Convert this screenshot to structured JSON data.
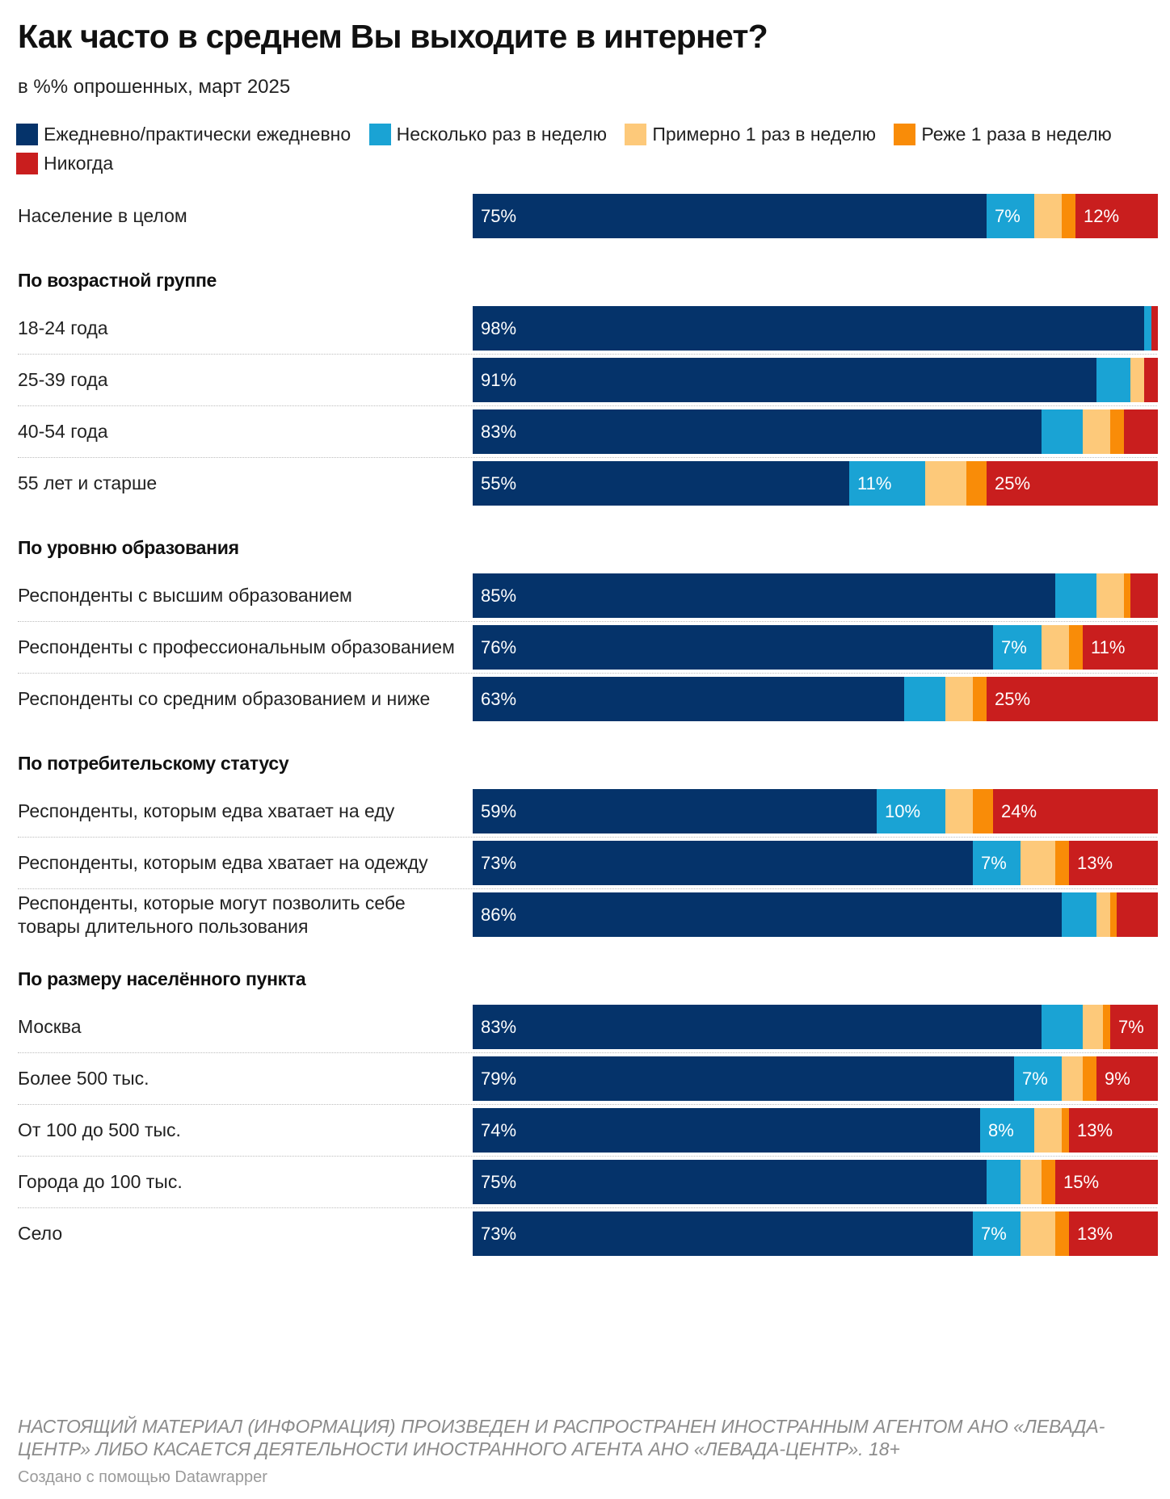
{
  "chart_data": {
    "type": "bar",
    "orientation": "horizontal",
    "stacked": true,
    "title": "Как часто в среднем Вы выходите в интернет?",
    "subtitle": "в %% опрошенных, март 2025",
    "xlim": [
      0,
      100
    ],
    "legend_position": "top",
    "series": [
      {
        "name": "Ежедневно/практически ежедневно",
        "color": "#05336a"
      },
      {
        "name": "Несколько раз в неделю",
        "color": "#1aa3d4"
      },
      {
        "name": "Примерно 1 раз в неделю",
        "color": "#fdc97a"
      },
      {
        "name": "Реже 1 раза в неделю",
        "color": "#f98c08"
      },
      {
        "name": "Никогда",
        "color": "#c91e1e"
      }
    ],
    "groups": [
      {
        "title": "",
        "rows": [
          {
            "label": "Население в целом",
            "values": [
              75,
              7,
              4,
              2,
              12
            ],
            "labels": [
              "75%",
              "7%",
              "",
              "",
              "12%"
            ]
          }
        ]
      },
      {
        "title": "По возрастной группе",
        "rows": [
          {
            "label": "18-24 года",
            "values": [
              98,
              1,
              0,
              0,
              1
            ],
            "labels": [
              "98%",
              "",
              "",
              "",
              ""
            ]
          },
          {
            "label": "25-39 года",
            "values": [
              91,
              5,
              2,
              0,
              2
            ],
            "labels": [
              "91%",
              "",
              "",
              "",
              ""
            ]
          },
          {
            "label": "40-54 года",
            "values": [
              83,
              6,
              4,
              2,
              5
            ],
            "labels": [
              "83%",
              "",
              "",
              "",
              ""
            ]
          },
          {
            "label": "55 лет и старше",
            "values": [
              55,
              11,
              6,
              3,
              25
            ],
            "labels": [
              "55%",
              "11%",
              "",
              "",
              "25%"
            ]
          }
        ]
      },
      {
        "title": "По уровню образования",
        "rows": [
          {
            "label": "Респонденты с высшим образованием",
            "values": [
              85,
              6,
              4,
              1,
              4
            ],
            "labels": [
              "85%",
              "",
              "",
              "",
              ""
            ]
          },
          {
            "label": "Респонденты с профессиональным образованием",
            "values": [
              76,
              7,
              4,
              2,
              11
            ],
            "labels": [
              "76%",
              "7%",
              "",
              "",
              "11%"
            ]
          },
          {
            "label": "Респонденты со средним образованием и ниже",
            "values": [
              63,
              6,
              4,
              2,
              25
            ],
            "labels": [
              "63%",
              "",
              "",
              "",
              "25%"
            ]
          }
        ]
      },
      {
        "title": "По потребительскому статусу",
        "rows": [
          {
            "label": "Респонденты, которым едва хватает на еду",
            "values": [
              59,
              10,
              4,
              3,
              24
            ],
            "labels": [
              "59%",
              "10%",
              "",
              "",
              "24%"
            ]
          },
          {
            "label": "Респонденты, которым едва хватает на одежду",
            "values": [
              73,
              7,
              5,
              2,
              13
            ],
            "labels": [
              "73%",
              "7%",
              "",
              "",
              "13%"
            ]
          },
          {
            "label": "Респонденты, которые могут позволить себе товары длительного пользования",
            "values": [
              86,
              5,
              2,
              1,
              6
            ],
            "labels": [
              "86%",
              "",
              "",
              "",
              ""
            ]
          }
        ]
      },
      {
        "title": "По размеру населённого пункта",
        "rows": [
          {
            "label": "Москва",
            "values": [
              83,
              6,
              3,
              1,
              7
            ],
            "labels": [
              "83%",
              "",
              "",
              "",
              "7%"
            ]
          },
          {
            "label": "Более 500 тыс.",
            "values": [
              79,
              7,
              3,
              2,
              9
            ],
            "labels": [
              "79%",
              "7%",
              "",
              "",
              "9%"
            ]
          },
          {
            "label": "От 100 до 500 тыс.",
            "values": [
              74,
              8,
              4,
              1,
              13
            ],
            "labels": [
              "74%",
              "8%",
              "",
              "",
              "13%"
            ]
          },
          {
            "label": "Города до 100 тыс.",
            "values": [
              75,
              5,
              3,
              2,
              15
            ],
            "labels": [
              "75%",
              "",
              "",
              "",
              "15%"
            ]
          },
          {
            "label": "Село",
            "values": [
              73,
              7,
              5,
              2,
              13
            ],
            "labels": [
              "73%",
              "7%",
              "",
              "",
              "13%"
            ]
          }
        ]
      }
    ]
  },
  "footer": {
    "note": "НАСТОЯЩИЙ МАТЕРИАЛ (ИНФОРМАЦИЯ) ПРОИЗВЕДЕН И РАСПРОСТРАНЕН ИНОСТРАННЫМ АГЕНТОМ АНО «ЛЕВАДА-ЦЕНТР» ЛИБО КАСАЕТСЯ ДЕЯТЕЛЬНОСТИ ИНОСТРАННОГО АГЕНТА АНО «ЛЕВАДА-ЦЕНТР». 18+",
    "credit": "Создано с помощью Datawrapper"
  }
}
